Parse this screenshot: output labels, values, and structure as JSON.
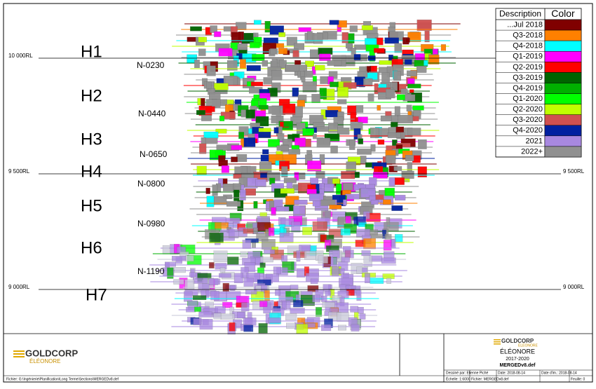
{
  "legend": {
    "header": [
      "Description",
      "Color"
    ],
    "items": [
      {
        "label": "...Jul 2018",
        "color": "#800000"
      },
      {
        "label": "Q3-2018",
        "color": "#ff8000"
      },
      {
        "label": "Q4-2018",
        "color": "#00ffff"
      },
      {
        "label": "Q1-2019",
        "color": "#ff00ff"
      },
      {
        "label": "Q2-2019",
        "color": "#ff0000"
      },
      {
        "label": "Q3-2019",
        "color": "#006400"
      },
      {
        "label": "Q4-2019",
        "color": "#00b000"
      },
      {
        "label": "Q1-2020",
        "color": "#00ff00"
      },
      {
        "label": "Q2-2020",
        "color": "#c0ff00"
      },
      {
        "label": "Q3-2020",
        "color": "#d05050"
      },
      {
        "label": "Q4-2020",
        "color": "#0020a0"
      },
      {
        "label": "2021",
        "color": "#a888e0"
      },
      {
        "label": "2022+",
        "color": "#909090"
      }
    ]
  },
  "elevations": [
    "10 000RL",
    "9 500RL",
    "9 000RL"
  ],
  "horizons": [
    "H1",
    "H2",
    "H3",
    "H4",
    "H5",
    "H6",
    "H7"
  ],
  "levels": [
    "N-0230",
    "N-0440",
    "N-0650",
    "N-0800",
    "N-0980",
    "N-1190"
  ],
  "title_block": {
    "logo": "GOLDCORP",
    "site": "ÉLÉONORE",
    "period": "2017-2020",
    "file": "MERGEDv8.def",
    "drawn_by": "Dessiné par: Etienne Piché",
    "date": "Date: 2018-08-14",
    "scale": "Échelle: 1:6000",
    "file_name": "Fichier: MERGEDv8.def",
    "print_date": "Date d'im.: 2018-08-14",
    "sheet": "Feuille: 0",
    "path": "Fichier: G:\\Ingénierie\\Planification\\Long Terme\\Sections\\MERGEDv8.def"
  }
}
